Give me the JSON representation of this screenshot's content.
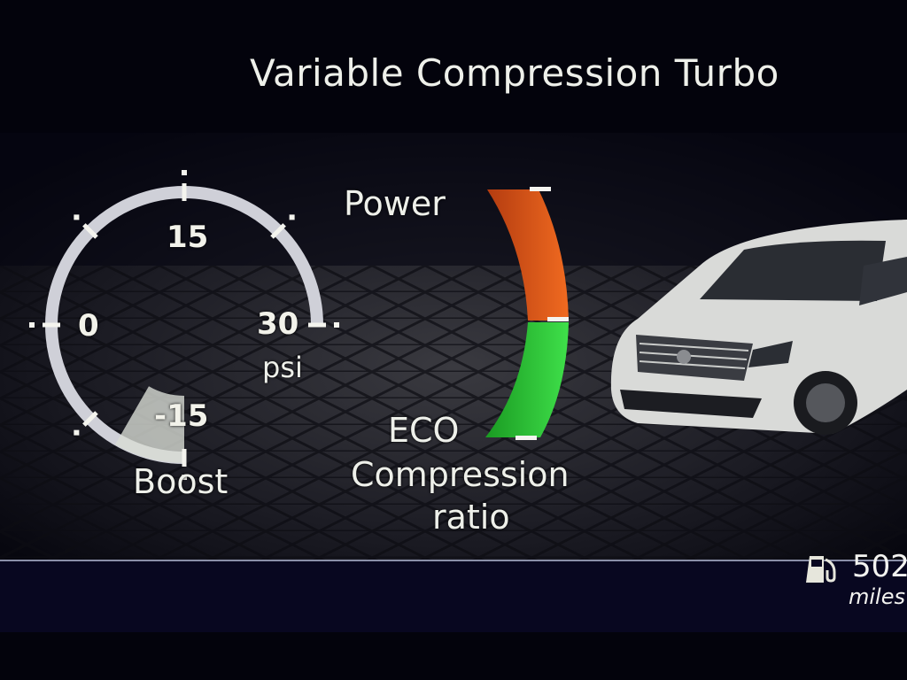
{
  "header": {
    "title": "Variable Compression Turbo"
  },
  "boost_gauge": {
    "label": "Boost",
    "unit": "psi",
    "ticks": [
      "-15",
      "0",
      "15",
      "30"
    ],
    "min": -15,
    "max": 30,
    "value": -10,
    "fill_color": "#d8dcd4"
  },
  "compression_gauge": {
    "top_label": "Power",
    "bottom_label": "ECO",
    "caption_line1": "Compression",
    "caption_line2": "ratio",
    "power_color": "#e2571a",
    "eco_color": "#2fc43a"
  },
  "footer": {
    "fuel_icon": "fuel-pump-icon",
    "range_value": "502",
    "range_unit": "miles"
  },
  "colors": {
    "background": "#03030c",
    "text": "#eef0ea"
  }
}
